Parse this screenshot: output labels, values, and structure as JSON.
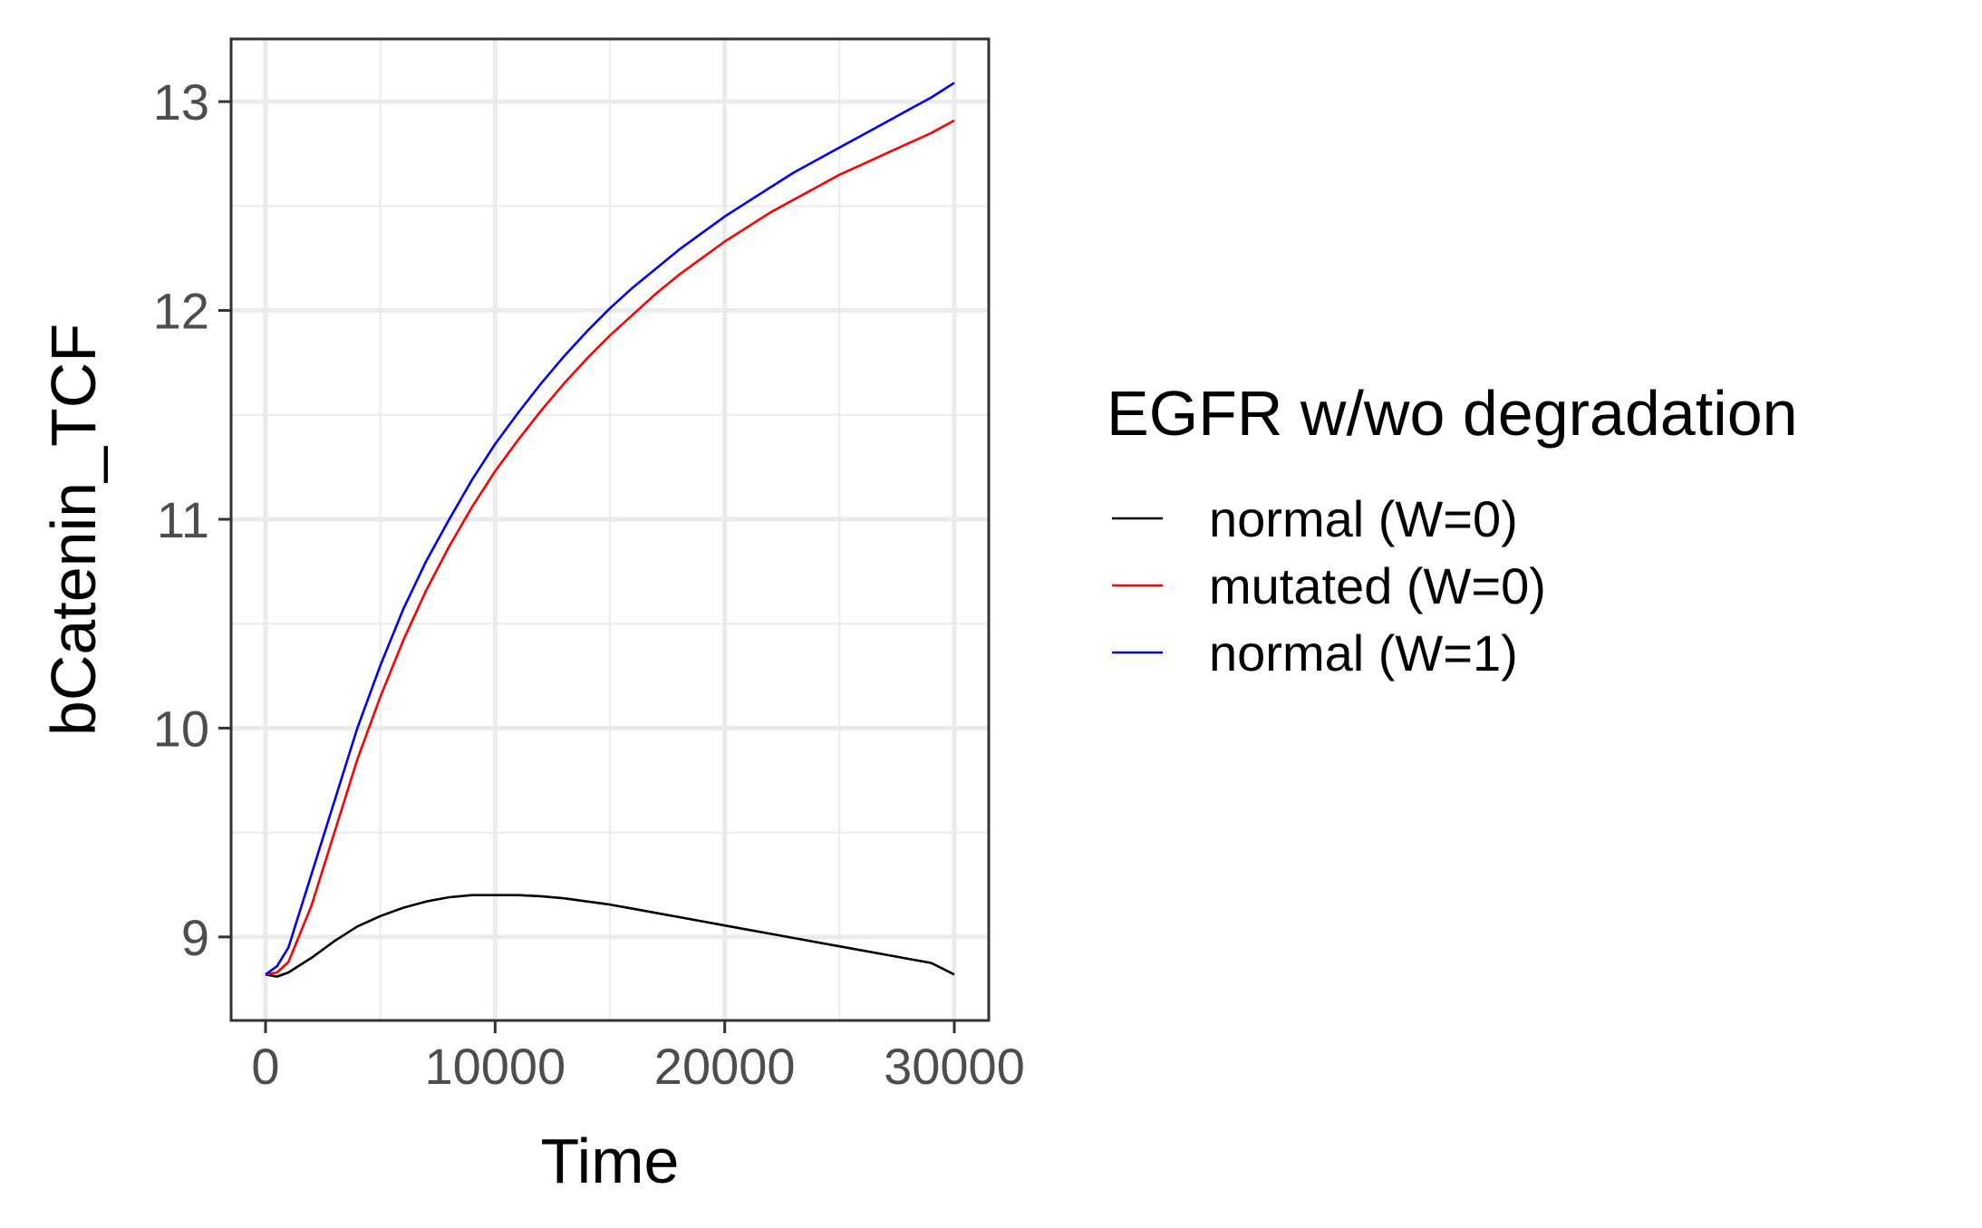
{
  "chart_data": {
    "type": "line",
    "title": "",
    "xlabel": "Time",
    "ylabel": "bCatenin_TCF",
    "xlim": [
      -1500,
      31500
    ],
    "ylim": [
      8.6,
      13.3
    ],
    "x_ticks": [
      0,
      10000,
      20000,
      30000
    ],
    "x_tick_labels": [
      "0",
      "10000",
      "20000",
      "30000"
    ],
    "y_ticks": [
      9,
      10,
      11,
      12,
      13
    ],
    "y_tick_labels": [
      "9",
      "10",
      "11",
      "12",
      "13"
    ],
    "grid": true,
    "legend": {
      "title": "EGFR w/wo degradation",
      "placement": "right"
    },
    "series": [
      {
        "name": "normal (W=0)",
        "color": "#000000",
        "x": [
          0,
          500,
          1000,
          2000,
          3000,
          4000,
          5000,
          6000,
          7000,
          8000,
          9000,
          10000,
          11000,
          12000,
          13000,
          14000,
          15000,
          16000,
          17000,
          18000,
          19000,
          20000,
          21000,
          22000,
          23000,
          24000,
          25000,
          26000,
          27000,
          28000,
          29000,
          30000
        ],
        "y": [
          8.82,
          8.81,
          8.83,
          8.9,
          8.98,
          9.05,
          9.1,
          9.14,
          9.17,
          9.19,
          9.2,
          9.2,
          9.2,
          9.195,
          9.185,
          9.17,
          9.155,
          9.135,
          9.115,
          9.095,
          9.075,
          9.055,
          9.035,
          9.015,
          8.995,
          8.975,
          8.955,
          8.935,
          8.915,
          8.895,
          8.875,
          8.82
        ]
      },
      {
        "name": "mutated (W=0)",
        "color": "#ff0000",
        "x": [
          0,
          500,
          1000,
          2000,
          3000,
          4000,
          5000,
          6000,
          7000,
          8000,
          9000,
          10000,
          11000,
          12000,
          13000,
          14000,
          15000,
          16000,
          17000,
          18000,
          19000,
          20000,
          21000,
          22000,
          23000,
          24000,
          25000,
          26000,
          27000,
          28000,
          29000,
          30000
        ],
        "y": [
          8.82,
          8.83,
          8.88,
          9.15,
          9.5,
          9.85,
          10.15,
          10.42,
          10.66,
          10.87,
          11.06,
          11.23,
          11.38,
          11.52,
          11.65,
          11.77,
          11.88,
          11.98,
          12.08,
          12.17,
          12.25,
          12.33,
          12.4,
          12.47,
          12.53,
          12.59,
          12.65,
          12.7,
          12.75,
          12.8,
          12.85,
          12.91
        ]
      },
      {
        "name": "normal (W=1)",
        "color": "#0000ff",
        "x": [
          0,
          500,
          1000,
          2000,
          3000,
          4000,
          5000,
          6000,
          7000,
          8000,
          9000,
          10000,
          11000,
          12000,
          13000,
          14000,
          15000,
          16000,
          17000,
          18000,
          19000,
          20000,
          21000,
          22000,
          23000,
          24000,
          25000,
          26000,
          27000,
          28000,
          29000,
          30000
        ],
        "y": [
          8.82,
          8.86,
          8.95,
          9.3,
          9.65,
          10.0,
          10.3,
          10.57,
          10.8,
          11.0,
          11.19,
          11.36,
          11.51,
          11.65,
          11.78,
          11.9,
          12.01,
          12.11,
          12.2,
          12.29,
          12.37,
          12.45,
          12.52,
          12.59,
          12.66,
          12.72,
          12.78,
          12.84,
          12.9,
          12.96,
          13.02,
          13.09
        ]
      }
    ]
  }
}
